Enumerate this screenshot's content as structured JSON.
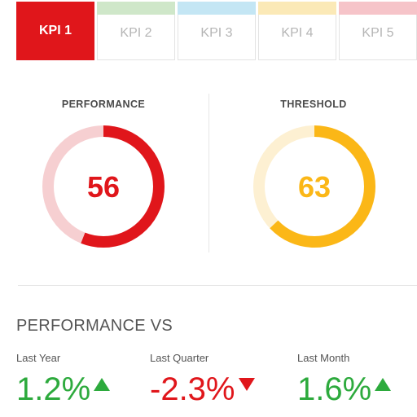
{
  "tabs": [
    {
      "label": "KPI 1",
      "color": "#e0161b",
      "active": true
    },
    {
      "label": "KPI 2",
      "color": "#cfe7c9",
      "active": false
    },
    {
      "label": "KPI 3",
      "color": "#c4e6f4",
      "active": false
    },
    {
      "label": "KPI 4",
      "color": "#fbe9b7",
      "active": false
    },
    {
      "label": "KPI 5",
      "color": "#f6c4c9",
      "active": false
    }
  ],
  "gauges": [
    {
      "title": "PERFORMANCE",
      "value": "56",
      "percent": 56,
      "color": "#e0161b",
      "track": "#f6cfd1"
    },
    {
      "title": "THRESHOLD",
      "value": "63",
      "percent": 63,
      "color": "#fbb717",
      "track": "#fdf0d2"
    }
  ],
  "comparison": {
    "title": "PERFORMANCE VS",
    "items": [
      {
        "label": "Last Year",
        "value": "1.2%",
        "direction": "up",
        "color": "#2daa3d"
      },
      {
        "label": "Last Quarter",
        "value": "-2.3%",
        "direction": "down",
        "color": "#e0161b"
      },
      {
        "label": "Last Month",
        "value": "1.6%",
        "direction": "up",
        "color": "#2daa3d"
      }
    ]
  }
}
